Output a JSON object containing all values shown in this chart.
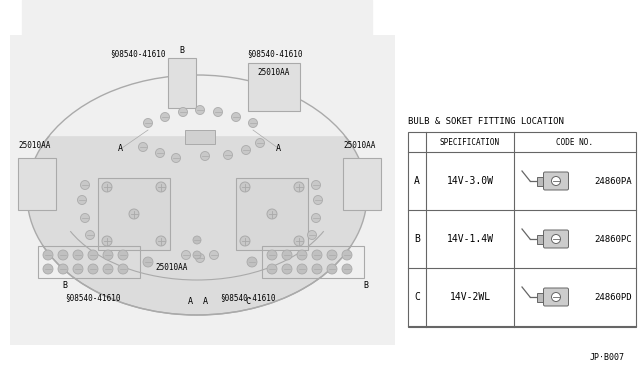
{
  "bg_color": "#e8e8e8",
  "line_color": "#aaaaaa",
  "dark_line": "#666666",
  "title": "BULB & SOKET FITTING LOCATION",
  "table_headers": [
    "SPECIFICATION",
    "CODE NO."
  ],
  "rows": [
    {
      "label": "A",
      "spec": "14V-3.0W",
      "code": "24860PA"
    },
    {
      "label": "B",
      "spec": "14V-1.4W",
      "code": "24860PC"
    },
    {
      "label": "C",
      "spec": "14V-2WL",
      "code": "24860PD"
    }
  ],
  "footer": "JP·B007",
  "circle_sym": "§"
}
